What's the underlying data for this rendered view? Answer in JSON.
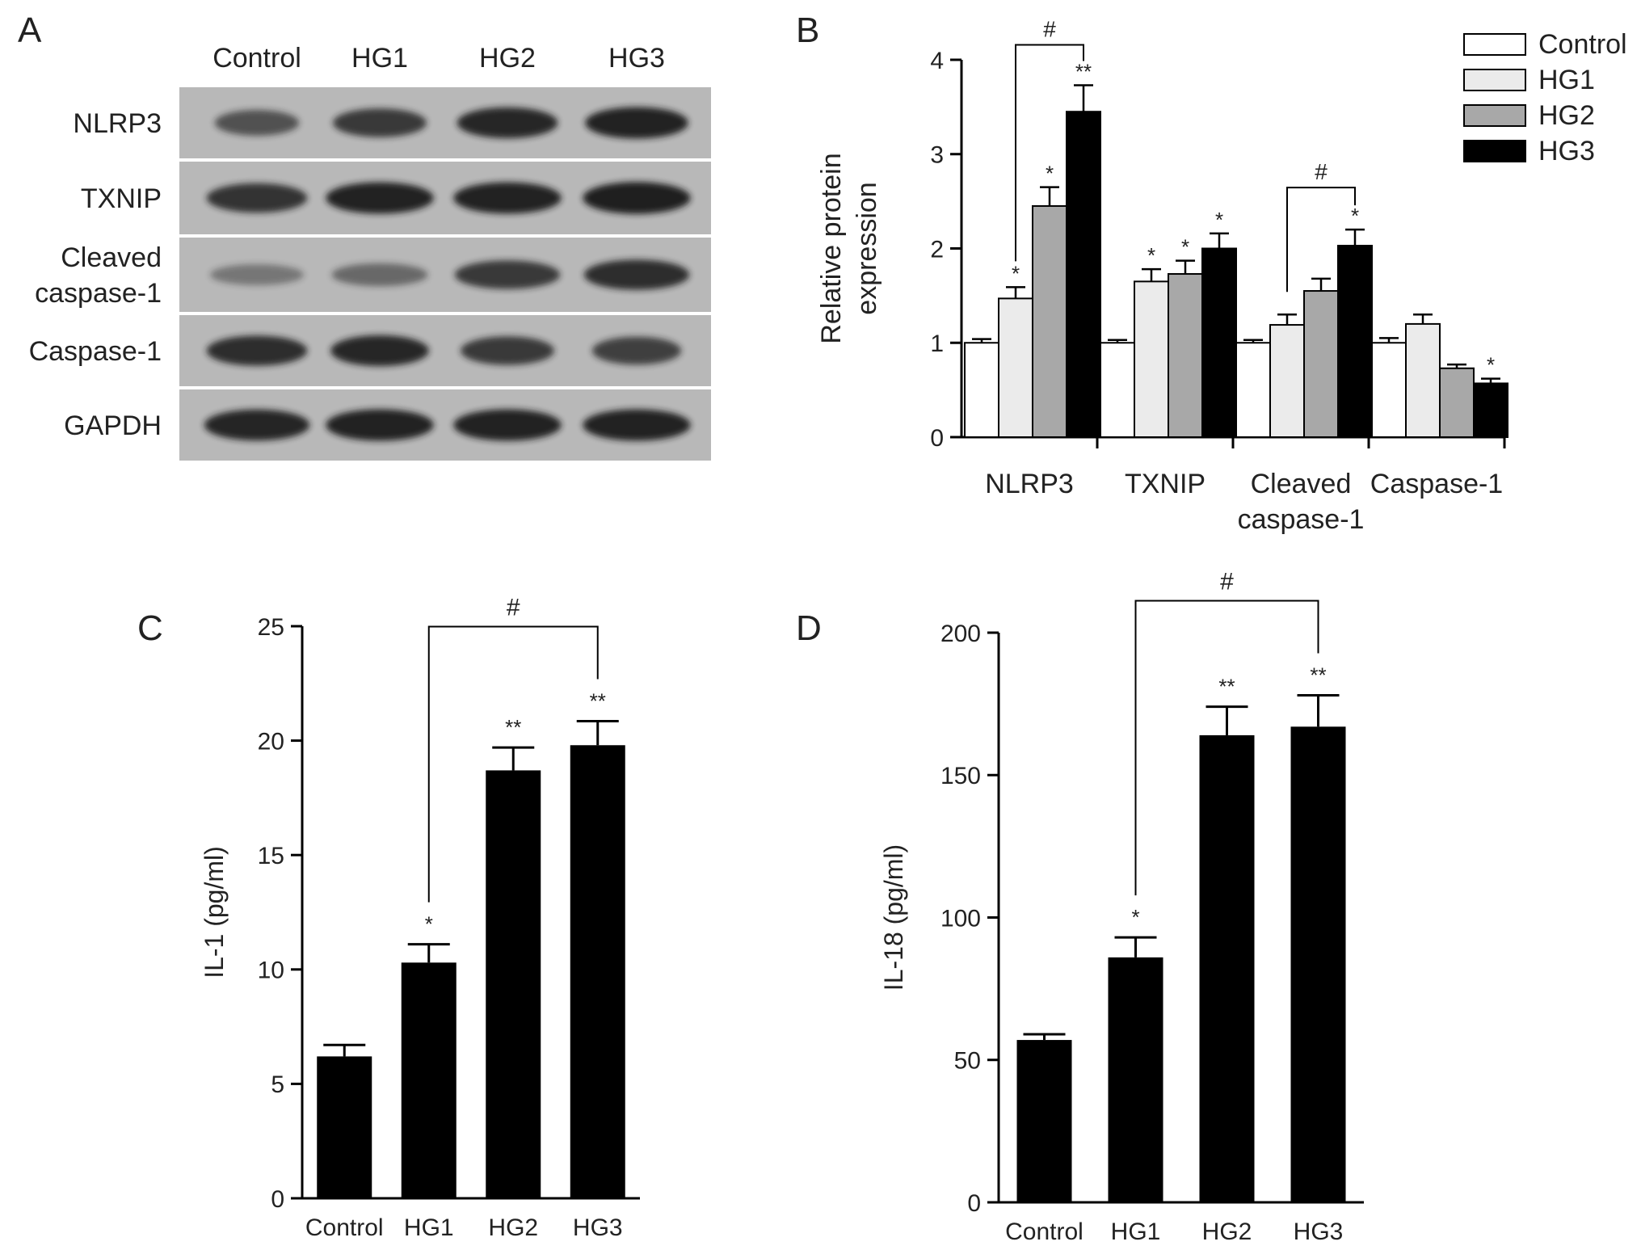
{
  "panels": {
    "a": {
      "letter": "A"
    },
    "b": {
      "letter": "B"
    },
    "c": {
      "letter": "C"
    },
    "d": {
      "letter": "D"
    }
  },
  "blot": {
    "lanes": [
      "Control",
      "HG1",
      "HG2",
      "HG3"
    ],
    "rows": [
      {
        "label_lines": [
          "NLRP3"
        ],
        "intensity": [
          0.55,
          0.75,
          0.9,
          0.95
        ],
        "width": [
          0.72,
          0.8,
          0.86,
          0.88
        ]
      },
      {
        "label_lines": [
          "TXNIP"
        ],
        "intensity": [
          0.8,
          0.95,
          0.95,
          0.98
        ],
        "width": [
          0.86,
          0.92,
          0.92,
          0.92
        ]
      },
      {
        "label_lines": [
          "Cleaved",
          "caspase-1"
        ],
        "intensity": [
          0.22,
          0.35,
          0.75,
          0.85
        ],
        "width": [
          0.8,
          0.82,
          0.9,
          0.9
        ]
      },
      {
        "label_lines": [
          "Caspase-1"
        ],
        "intensity": [
          0.85,
          0.9,
          0.75,
          0.7
        ],
        "width": [
          0.86,
          0.84,
          0.8,
          0.76
        ]
      },
      {
        "label_lines": [
          "GAPDH"
        ],
        "intensity": [
          0.92,
          0.95,
          0.95,
          0.95
        ],
        "width": [
          0.9,
          0.92,
          0.92,
          0.92
        ]
      }
    ],
    "colors": {
      "background": "#b8b8b8",
      "band": "#1c1c1c"
    }
  },
  "chart_data": [
    {
      "panel": "B",
      "type": "bar",
      "categories": [
        [
          "NLRP3"
        ],
        [
          "TXNIP"
        ],
        [
          "Cleaved",
          "caspase-1"
        ],
        [
          "Caspase-1"
        ]
      ],
      "series": [
        {
          "name": "Control",
          "color": "#ffffff",
          "values": [
            1.0,
            1.0,
            1.0,
            1.0
          ],
          "errors": [
            0.04,
            0.03,
            0.03,
            0.05
          ],
          "stars": [
            "",
            "",
            "",
            ""
          ]
        },
        {
          "name": "HG1",
          "color": "#ebebeb",
          "values": [
            1.47,
            1.65,
            1.19,
            1.2
          ],
          "errors": [
            0.12,
            0.13,
            0.11,
            0.1
          ],
          "stars": [
            "*",
            "*",
            "",
            ""
          ]
        },
        {
          "name": "HG2",
          "color": "#a8a8a8",
          "values": [
            2.45,
            1.73,
            1.55,
            0.73
          ],
          "errors": [
            0.2,
            0.14,
            0.13,
            0.04
          ],
          "stars": [
            "*",
            "*",
            "",
            ""
          ]
        },
        {
          "name": "HG3",
          "color": "#000000",
          "values": [
            3.45,
            2.0,
            2.03,
            0.57
          ],
          "errors": [
            0.28,
            0.16,
            0.17,
            0.05
          ],
          "stars": [
            "**",
            "*",
            "*",
            "*"
          ]
        }
      ],
      "brackets": [
        {
          "category": 0,
          "from_series": 1,
          "to_series": 3,
          "label": "#"
        },
        {
          "category": 2,
          "from_series": 1,
          "to_series": 3,
          "label": "#"
        }
      ],
      "ylabel_lines": [
        "Relative protein",
        "expression"
      ],
      "ylim": [
        0,
        4
      ],
      "yticks": [
        0,
        1,
        2,
        3,
        4
      ],
      "grid": false,
      "legend": "top-right"
    },
    {
      "panel": "C",
      "type": "bar",
      "categories": [
        "Control",
        "HG1",
        "HG2",
        "HG3"
      ],
      "values": [
        6.2,
        10.3,
        18.7,
        19.8
      ],
      "errors": [
        0.5,
        0.8,
        1.0,
        1.05
      ],
      "stars": [
        "",
        "*",
        "**",
        "**"
      ],
      "color": "#000000",
      "bracket": {
        "from": 1,
        "to": 3,
        "label": "#"
      },
      "ylabel": "IL-1 (pg/ml)",
      "ylim": [
        0,
        25
      ],
      "yticks": [
        0,
        5,
        10,
        15,
        20,
        25
      ],
      "grid": false
    },
    {
      "panel": "D",
      "type": "bar",
      "categories": [
        "Control",
        "HG1",
        "HG2",
        "HG3"
      ],
      "values": [
        57,
        86,
        164,
        167
      ],
      "errors": [
        2,
        7,
        10,
        11
      ],
      "stars": [
        "",
        "*",
        "**",
        "**"
      ],
      "color": "#000000",
      "bracket": {
        "from": 1,
        "to": 3,
        "label": "#"
      },
      "ylabel": "IL-18 (pg/ml)",
      "ylim": [
        0,
        200
      ],
      "yticks": [
        0,
        50,
        100,
        150,
        200
      ],
      "grid": false
    }
  ]
}
